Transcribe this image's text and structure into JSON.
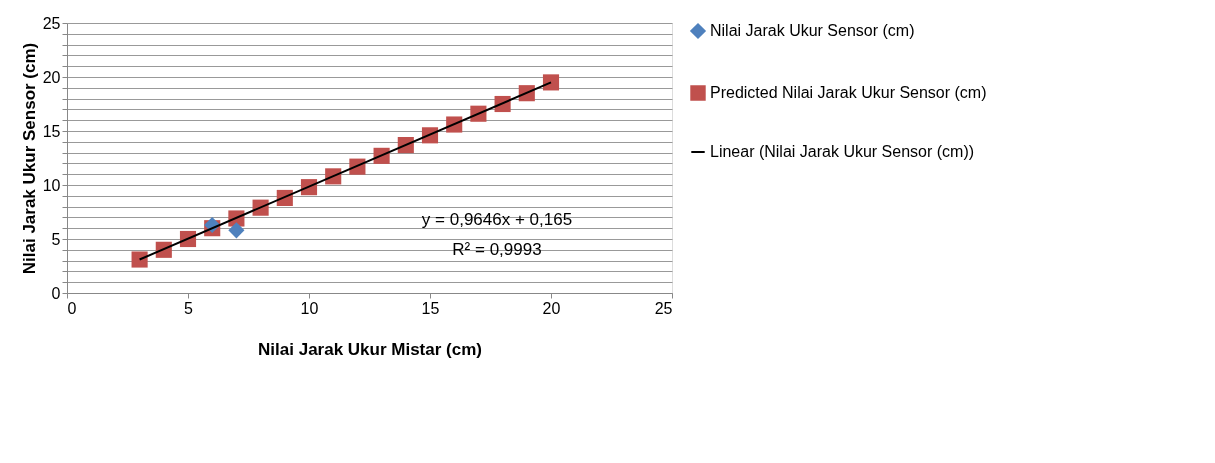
{
  "chart_data": {
    "type": "scatter",
    "xlabel": "Nilai Jarak Ukur Mistar (cm)",
    "ylabel": "Nilai Jarak Ukur Sensor (cm)",
    "x": [
      3,
      4,
      5,
      6,
      7,
      8,
      9,
      10,
      11,
      12,
      13,
      14,
      15,
      16,
      17,
      18,
      19,
      20
    ],
    "series": [
      {
        "name": "Nilai Jarak Ukur Sensor (cm)",
        "color": "#4f81bd",
        "marker": "diamond",
        "values": [
          null,
          null,
          null,
          6.3,
          5.8,
          null,
          null,
          null,
          null,
          null,
          null,
          null,
          null,
          null,
          null,
          null,
          null,
          null
        ]
      },
      {
        "name": "Predicted Nilai Jarak Ukur Sensor (cm)",
        "color": "#c0504d",
        "marker": "square",
        "values": [
          3.1,
          4.0,
          5.0,
          6.0,
          6.9,
          7.9,
          8.8,
          9.8,
          10.8,
          11.7,
          12.7,
          13.7,
          14.6,
          15.6,
          16.6,
          17.5,
          18.5,
          19.5
        ]
      },
      {
        "name": "Linear (Nilai Jarak Ukur Sensor (cm))",
        "type": "line",
        "color": "#000000",
        "x": [
          3,
          20
        ],
        "values": [
          3.1,
          19.5
        ]
      }
    ],
    "xlim": [
      0,
      25
    ],
    "xticks": [
      0,
      5,
      10,
      15,
      20,
      25
    ],
    "ylim": [
      0,
      25
    ],
    "yticks": [
      0,
      {
        "value": 1,
        "label": null
      },
      {
        "value": 2,
        "label": null
      },
      {
        "value": 3,
        "label": null
      },
      {
        "value": 4,
        "label": null
      },
      5,
      {
        "value": 6,
        "label": null
      },
      {
        "value": 7,
        "label": null
      },
      {
        "value": 8,
        "label": null
      },
      {
        "value": 9,
        "label": null
      },
      10,
      {
        "value": 11,
        "label": null
      },
      {
        "value": 12,
        "label": null
      },
      {
        "value": 13,
        "label": null
      },
      {
        "value": 14,
        "label": null
      },
      15,
      {
        "value": 16,
        "label": null
      },
      {
        "value": 17,
        "label": null
      },
      {
        "value": 18,
        "label": null
      },
      {
        "value": 19,
        "label": null
      },
      20,
      {
        "value": 21,
        "label": null
      },
      {
        "value": 22,
        "label": null
      },
      {
        "value": 23,
        "label": null
      },
      {
        "value": 24,
        "label": null
      },
      25
    ],
    "grid": "y",
    "legend": "right",
    "annotations": [
      "y = 0,9646x + 0,165",
      "R² = 0,9993"
    ]
  }
}
